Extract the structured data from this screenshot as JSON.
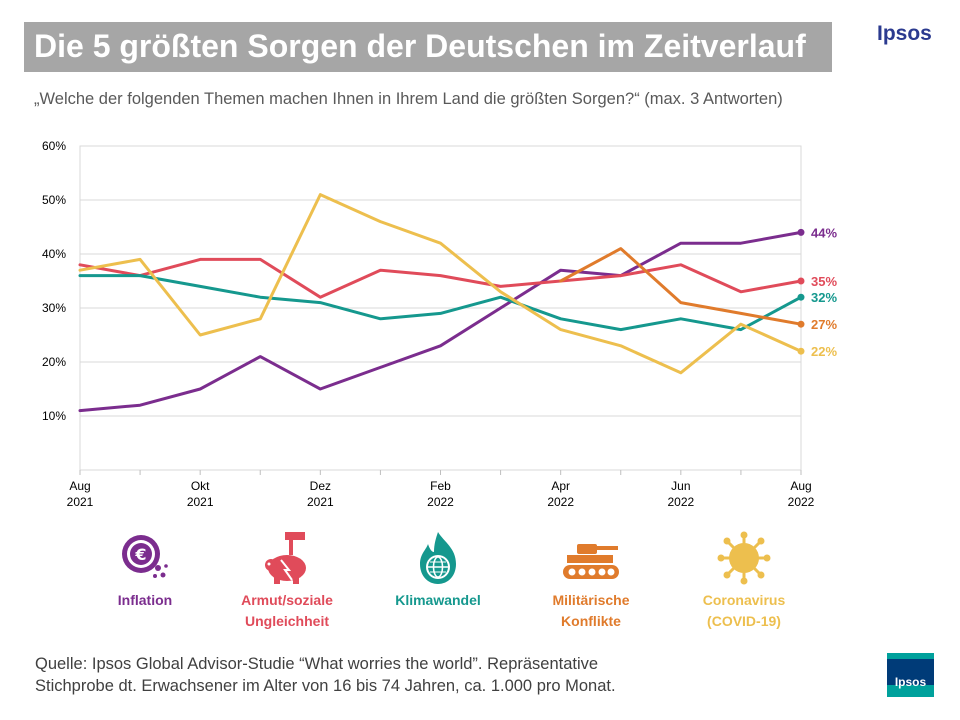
{
  "header": {
    "title": "Die 5 größten Sorgen der Deutschen im Zeitverlauf",
    "brand": "Ipsos",
    "subtitle": "„Welche der folgenden Themen machen Ihnen in Ihrem Land die größten Sorgen?“ (max. 3 Antworten)"
  },
  "chart_data": {
    "type": "line",
    "title": "Die 5 größten Sorgen der Deutschen im Zeitverlauf",
    "xlabel": "",
    "ylabel": "",
    "ylim": [
      0,
      60
    ],
    "yticks": [
      "10%",
      "20%",
      "30%",
      "40%",
      "50%",
      "60%"
    ],
    "ytick_values": [
      10,
      20,
      30,
      40,
      50,
      60
    ],
    "x_tick_labels": [
      {
        "index": 0,
        "month": "Aug",
        "year": "2021"
      },
      {
        "index": 2,
        "month": "Okt",
        "year": "2021"
      },
      {
        "index": 4,
        "month": "Dez",
        "year": "2021"
      },
      {
        "index": 6,
        "month": "Feb",
        "year": "2022"
      },
      {
        "index": 8,
        "month": "Apr",
        "year": "2022"
      },
      {
        "index": 10,
        "month": "Jun",
        "year": "2022"
      },
      {
        "index": 12,
        "month": "Aug",
        "year": "2022"
      }
    ],
    "months": [
      "Aug 2021",
      "Sep 2021",
      "Okt 2021",
      "Nov 2021",
      "Dez 2021",
      "Jan 2022",
      "Feb 2022",
      "Mrz 2022",
      "Apr 2022",
      "Mai 2022",
      "Jun 2022",
      "Jul 2022",
      "Aug 2022"
    ],
    "series": [
      {
        "name": "Inflation",
        "color": "#7b2d8e",
        "values": [
          11,
          12,
          15,
          21,
          15,
          19,
          23,
          30,
          37,
          36,
          42,
          42,
          44
        ],
        "end_label": "44%"
      },
      {
        "name": "Armut/soziale Ungleichheit",
        "color": "#e04b5a",
        "values": [
          38,
          36,
          39,
          39,
          32,
          37,
          36,
          34,
          35,
          36,
          38,
          33,
          35
        ],
        "end_label": "35%"
      },
      {
        "name": "Klimawandel",
        "color": "#15988e",
        "values": [
          36,
          36,
          34,
          32,
          31,
          28,
          29,
          32,
          28,
          26,
          28,
          26,
          32
        ],
        "end_label": "32%"
      },
      {
        "name": "Militärische Konflikte",
        "color": "#e07b2c",
        "start_index": 8,
        "values": [
          35,
          41,
          31,
          29,
          27
        ],
        "end_label": "27%"
      },
      {
        "name": "Coronavirus (COVID-19)",
        "color": "#edbf4e",
        "values": [
          37,
          39,
          25,
          28,
          51,
          46,
          42,
          33,
          26,
          23,
          18,
          27,
          22
        ],
        "end_label": "22%"
      }
    ]
  },
  "legend": [
    {
      "icon": "euro-coin-icon",
      "line1": "Inflation",
      "line2": "",
      "color": "#7b2d8e"
    },
    {
      "icon": "piggy-bank-hammer-icon",
      "line1": "Armut/soziale",
      "line2": "Ungleichheit",
      "color": "#e04b5a"
    },
    {
      "icon": "burning-globe-icon",
      "line1": "Klimawandel",
      "line2": "",
      "color": "#15988e"
    },
    {
      "icon": "tank-icon",
      "line1": "Militärische",
      "line2": "Konflikte",
      "color": "#e07b2c"
    },
    {
      "icon": "virus-icon",
      "line1": "Coronavirus",
      "line2": "(COVID-19)",
      "color": "#edbf4e"
    }
  ],
  "footer": {
    "source_line1": "Quelle: Ipsos Global Advisor-Studie  “What worries the world”. Repräsentative",
    "source_line2": "Stichprobe dt. Erwachsener  im Alter von 16 bis 74 Jahren, ca. 1.000 pro Monat.",
    "brand": "Ipsos"
  }
}
